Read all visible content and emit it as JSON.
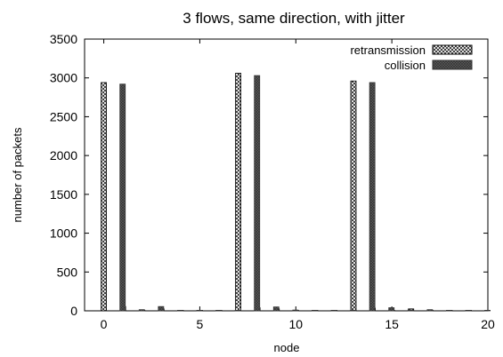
{
  "chart_data": {
    "type": "bar",
    "title": "3 flows, same direction, with jitter",
    "xlabel": "node",
    "ylabel": "number of packets",
    "xlim": [
      -1,
      20
    ],
    "ylim": [
      0,
      3500
    ],
    "xticks": [
      0,
      5,
      10,
      15,
      20
    ],
    "yticks": [
      0,
      500,
      1000,
      1500,
      2000,
      2500,
      3000,
      3500
    ],
    "grid": false,
    "legend_position": "top-right",
    "x": [
      0,
      1,
      2,
      3,
      4,
      5,
      6,
      7,
      8,
      9,
      10,
      11,
      12,
      13,
      14,
      15,
      16,
      17,
      18,
      19
    ],
    "series": [
      {
        "name": "retransmission",
        "pattern": "crosshatch",
        "color": "#000000",
        "values": [
          2940,
          55,
          5,
          25,
          5,
          5,
          5,
          3060,
          40,
          25,
          5,
          5,
          5,
          2960,
          35,
          5,
          25,
          5,
          5,
          5
        ]
      },
      {
        "name": "collision",
        "pattern": "dark",
        "color": "#555555",
        "values": [
          2920,
          15,
          55,
          5,
          3,
          3,
          3,
          3030,
          50,
          10,
          3,
          3,
          3,
          2940,
          40,
          10,
          15,
          3,
          3,
          3
        ]
      }
    ]
  }
}
